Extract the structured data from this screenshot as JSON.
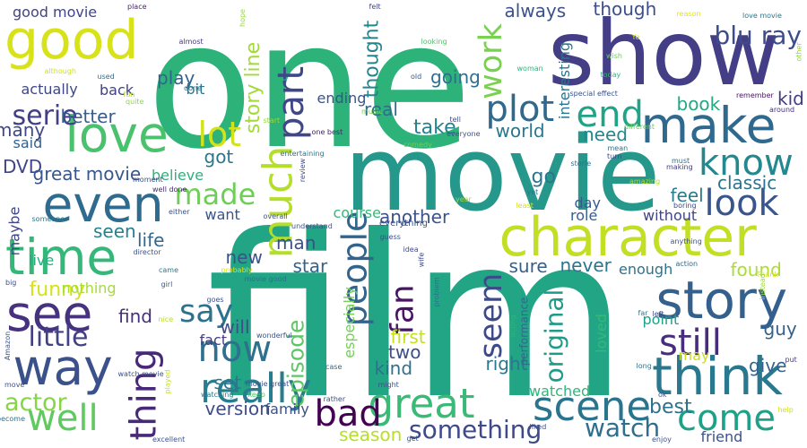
{
  "words": [
    {
      "text": "film",
      "color": "#21a585"
    },
    {
      "text": "one",
      "color": "#2db37a"
    },
    {
      "text": "movie",
      "color": "#26978b"
    },
    {
      "text": "show",
      "color": "#433e85"
    },
    {
      "text": "character",
      "color": "#c2df23"
    },
    {
      "text": "good",
      "color": "#d8e219"
    },
    {
      "text": "story",
      "color": "#34608d"
    },
    {
      "text": "think",
      "color": "#2a788e"
    },
    {
      "text": "way",
      "color": "#3b518b"
    },
    {
      "text": "even",
      "color": "#2f6b8e"
    },
    {
      "text": "love",
      "color": "#4ac16d"
    },
    {
      "text": "see",
      "color": "#46327e"
    },
    {
      "text": "time",
      "color": "#35b779"
    },
    {
      "text": "make",
      "color": "#30698e"
    },
    {
      "text": "much",
      "color": "#b5de2b"
    },
    {
      "text": "great",
      "color": "#3aba76"
    },
    {
      "text": "people",
      "color": "#32648e"
    },
    {
      "text": "really",
      "color": "#287c8e"
    },
    {
      "text": "scene",
      "color": "#2b748e"
    },
    {
      "text": "well",
      "color": "#60ca60"
    },
    {
      "text": "thing",
      "color": "#482878"
    },
    {
      "text": "plot",
      "color": "#31688e"
    },
    {
      "text": "now",
      "color": "#2d718e"
    },
    {
      "text": "know",
      "color": "#23898e"
    },
    {
      "text": "still",
      "color": "#472d7b"
    },
    {
      "text": "bad",
      "color": "#440154"
    },
    {
      "text": "come",
      "color": "#1fa187"
    },
    {
      "text": "end",
      "color": "#20a386"
    },
    {
      "text": "part",
      "color": "#3f4788"
    },
    {
      "text": "look",
      "color": "#39558c"
    },
    {
      "text": "lot",
      "color": "#d2e21b"
    },
    {
      "text": "made",
      "color": "#6ece58"
    },
    {
      "text": "say",
      "color": "#2c728e"
    },
    {
      "text": "fan",
      "color": "#481467"
    },
    {
      "text": "seem",
      "color": "#3e4989"
    },
    {
      "text": "work",
      "color": "#7ad151"
    },
    {
      "text": "watch",
      "color": "#2e6f8e"
    },
    {
      "text": "serie",
      "color": "#424086"
    },
    {
      "text": "actor",
      "color": "#86d549"
    },
    {
      "text": "blu ray",
      "color": "#3d4d8a"
    },
    {
      "text": "little",
      "color": "#424186"
    },
    {
      "text": "episode",
      "color": "#5cc863"
    },
    {
      "text": "something",
      "color": "#3e4a89"
    },
    {
      "text": "original",
      "color": "#1f9a8a"
    },
    {
      "text": "funny",
      "color": "#d5e21a"
    },
    {
      "text": "go",
      "color": "#2a768e"
    },
    {
      "text": "take",
      "color": "#26818e"
    },
    {
      "text": "thought",
      "color": "#25848e"
    },
    {
      "text": "story line",
      "color": "#a2da37"
    },
    {
      "text": "best",
      "color": "#2d708e"
    },
    {
      "text": "version",
      "color": "#3e4c8a"
    },
    {
      "text": "DVD",
      "color": "#404588"
    },
    {
      "text": "great movie",
      "color": "#39568c"
    },
    {
      "text": "got",
      "color": "#2a768e"
    },
    {
      "text": "going",
      "color": "#2e6e8e"
    },
    {
      "text": "feel",
      "color": "#297b8e"
    },
    {
      "text": "real",
      "color": "#2f6c8e"
    },
    {
      "text": "world",
      "color": "#2a778e"
    },
    {
      "text": "need",
      "color": "#24878e"
    },
    {
      "text": "many",
      "color": "#3f4889"
    },
    {
      "text": "better",
      "color": "#365d8d"
    },
    {
      "text": "play",
      "color": "#33638d"
    },
    {
      "text": "always",
      "color": "#3b528b"
    },
    {
      "text": "though",
      "color": "#3d4e8a"
    },
    {
      "text": "first",
      "color": "#c5e021"
    },
    {
      "text": "season",
      "color": "#b8de29"
    },
    {
      "text": "kid",
      "color": "#433d84"
    },
    {
      "text": "book",
      "color": "#22a884"
    },
    {
      "text": "man",
      "color": "#3c4f8a"
    },
    {
      "text": "guy",
      "color": "#33638d"
    },
    {
      "text": "find",
      "color": "#472f7d"
    },
    {
      "text": "will",
      "color": "#3d4e8a"
    },
    {
      "text": "set",
      "color": "#2a778e"
    },
    {
      "text": "right",
      "color": "#2a778e"
    },
    {
      "text": "kind",
      "color": "#2c718e"
    },
    {
      "text": "two",
      "color": "#3c4f8a"
    },
    {
      "text": "life",
      "color": "#31688e"
    },
    {
      "text": "new",
      "color": "#3b528b"
    },
    {
      "text": "seen",
      "color": "#27808e"
    },
    {
      "text": "star",
      "color": "#33628d"
    },
    {
      "text": "sure",
      "color": "#355f8d"
    },
    {
      "text": "never",
      "color": "#2b758e"
    },
    {
      "text": "found",
      "color": "#addc30"
    },
    {
      "text": "give",
      "color": "#33638d"
    },
    {
      "text": "classic",
      "color": "#2c738e"
    },
    {
      "text": "want",
      "color": "#3b528b"
    },
    {
      "text": "another",
      "color": "#3b528b"
    },
    {
      "text": "course",
      "color": "#35b779"
    },
    {
      "text": "said",
      "color": "#34608d"
    },
    {
      "text": "role",
      "color": "#365d8d"
    },
    {
      "text": "day",
      "color": "#375a8c"
    },
    {
      "text": "without",
      "color": "#414487"
    },
    {
      "text": "watched",
      "color": "#31b57b"
    },
    {
      "text": "loved",
      "color": "#37b878"
    },
    {
      "text": "fact",
      "color": "#433e85"
    },
    {
      "text": "maybe",
      "color": "#3f4788"
    },
    {
      "text": "nothing",
      "color": "#a8db34"
    },
    {
      "text": "believe",
      "color": "#2db27d"
    },
    {
      "text": "enough",
      "color": "#2c738e"
    },
    {
      "text": "actually",
      "color": "#3f4788"
    },
    {
      "text": "good movie",
      "color": "#414487"
    },
    {
      "text": "back",
      "color": "#424086"
    },
    {
      "text": "bit",
      "color": "#2a778e"
    },
    {
      "text": "ending",
      "color": "#3b528b"
    },
    {
      "text": "interesting",
      "color": "#2b748e"
    },
    {
      "text": "performance",
      "color": "#31688e"
    },
    {
      "text": "especially",
      "color": "#75d054"
    },
    {
      "text": "point",
      "color": "#1f9f88"
    },
    {
      "text": "live",
      "color": "#27ad81"
    },
    {
      "text": "may",
      "color": "#c8e020"
    },
    {
      "text": "friend",
      "color": "#3b528b"
    },
    {
      "text": "family",
      "color": "#3b528b"
    },
    {
      "text": "place",
      "color": "#481d6f"
    },
    {
      "text": "felt",
      "color": "#414487"
    },
    {
      "text": "hope",
      "color": "#98d83e"
    },
    {
      "text": "reason",
      "color": "#e5e419"
    },
    {
      "text": "love movie",
      "color": "#2a768e"
    },
    {
      "text": "almost",
      "color": "#443983"
    },
    {
      "text": "looking",
      "color": "#4ec36b"
    },
    {
      "text": "wish",
      "color": "#6ccd5a"
    },
    {
      "text": "Ye",
      "color": "#d2e21b"
    },
    {
      "text": "other",
      "color": "#94d840"
    },
    {
      "text": "although",
      "color": "#d2e21b"
    },
    {
      "text": "used",
      "color": "#2e6e8e"
    },
    {
      "text": "done",
      "color": "#2c728e"
    },
    {
      "text": "old",
      "color": "#375a8c"
    },
    {
      "text": "woman",
      "color": "#2fb47c"
    },
    {
      "text": "today",
      "color": "#32b67a"
    },
    {
      "text": "special effect",
      "color": "#3a538b"
    },
    {
      "text": "remember",
      "color": "#471063"
    },
    {
      "text": "around",
      "color": "#46307e"
    },
    {
      "text": "fun",
      "color": "#b5de2b"
    },
    {
      "text": "quite",
      "color": "#8fd744"
    },
    {
      "text": "start",
      "color": "#95d840"
    },
    {
      "text": "music",
      "color": "#7ad151"
    },
    {
      "text": "tell",
      "color": "#3e4a89"
    },
    {
      "text": "one best",
      "color": "#482071"
    },
    {
      "text": "everyone",
      "color": "#3b528b"
    },
    {
      "text": "different",
      "color": "#67cc5c"
    },
    {
      "text": "mean",
      "color": "#2c728e"
    },
    {
      "text": "turn",
      "color": "#3e4989"
    },
    {
      "text": "comedy",
      "color": "#6ece58"
    },
    {
      "text": "entertaining",
      "color": "#2a768e"
    },
    {
      "text": "review",
      "color": "#3e4c8a"
    },
    {
      "text": "storie",
      "color": "#2d708e"
    },
    {
      "text": "must",
      "color": "#2d708e"
    },
    {
      "text": "amazing",
      "color": "#b2dd2d"
    },
    {
      "text": "making",
      "color": "#433e85"
    },
    {
      "text": "moment",
      "color": "#3b528b"
    },
    {
      "text": "well done",
      "color": "#482777"
    },
    {
      "text": "either",
      "color": "#3b528b"
    },
    {
      "text": "overall",
      "color": "#3b528b"
    },
    {
      "text": "understand",
      "color": "#3b528b"
    },
    {
      "text": "year",
      "color": "#a2da37"
    },
    {
      "text": "least",
      "color": "#d5e21a"
    },
    {
      "text": "yet",
      "color": "#2a768e"
    },
    {
      "text": "boring",
      "color": "#3e4a89"
    },
    {
      "text": "someone",
      "color": "#2a788e"
    },
    {
      "text": "director",
      "color": "#3b528b"
    },
    {
      "text": "came",
      "color": "#2a778e"
    },
    {
      "text": "guess",
      "color": "#3b528b"
    },
    {
      "text": "idea",
      "color": "#3e4c8a"
    },
    {
      "text": "wife",
      "color": "#3f4788"
    },
    {
      "text": "problem",
      "color": "#2c728e"
    },
    {
      "text": "probably",
      "color": "#dde318"
    },
    {
      "text": "movie good",
      "color": "#2c718e"
    },
    {
      "text": "anything",
      "color": "#3b528b"
    },
    {
      "text": "action",
      "color": "#31688e"
    },
    {
      "text": "Thank",
      "color": "#d5e21a"
    },
    {
      "text": "big",
      "color": "#3e4c8a"
    },
    {
      "text": "girl",
      "color": "#375a8c"
    },
    {
      "text": "goes",
      "color": "#3b528b"
    },
    {
      "text": "nice",
      "color": "#b5de2b"
    },
    {
      "text": "left",
      "color": "#3e4989"
    },
    {
      "text": "far",
      "color": "#2a768e"
    },
    {
      "text": "instead",
      "color": "#9bd93c"
    },
    {
      "text": "Amazon",
      "color": "#3b528b"
    },
    {
      "text": "acting",
      "color": "#2fb47c"
    },
    {
      "text": "watch movie",
      "color": "#3b528b"
    },
    {
      "text": "played",
      "color": "#c8e020"
    },
    {
      "text": "move",
      "color": "#3b528b"
    },
    {
      "text": "movie great",
      "color": "#3b528b"
    },
    {
      "text": "case",
      "color": "#31688e"
    },
    {
      "text": "might",
      "color": "#3b528b"
    },
    {
      "text": "long",
      "color": "#2a768e"
    },
    {
      "text": "put",
      "color": "#433e85"
    },
    {
      "text": "watching",
      "color": "#2a768e"
    },
    {
      "text": "keep",
      "color": "#4ac16d"
    },
    {
      "text": "rather",
      "color": "#3b528b"
    },
    {
      "text": "ok",
      "color": "#3b528b"
    },
    {
      "text": "become",
      "color": "#2c728e"
    },
    {
      "text": "excellent",
      "color": "#3b528b"
    },
    {
      "text": "get",
      "color": "#3b528b"
    },
    {
      "text": "liked",
      "color": "#3b528b"
    },
    {
      "text": "enjoy",
      "color": "#3b528b"
    },
    {
      "text": "help",
      "color": "#d2e21b"
    },
    {
      "text": "wonderful",
      "color": "#3b528b"
    },
    {
      "text": "everything",
      "color": "#3b528b"
    },
    {
      "text": "u",
      "color": "#3b528b"
    }
  ]
}
